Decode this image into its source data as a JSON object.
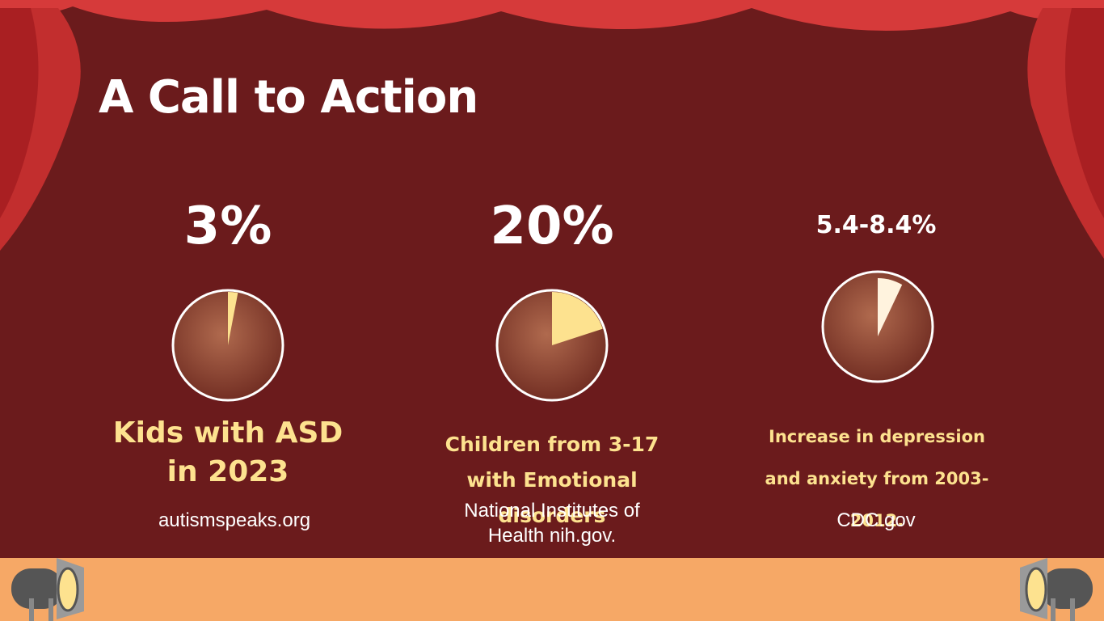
{
  "title": "A Call to Action",
  "colors": {
    "background": "#6b1b1c",
    "curtain": "#d63a3a",
    "curtain_dark": "#a91f22",
    "stage_floor": "#f6a866",
    "accent_text": "#fde28f",
    "pie_base": "#8a3a2c",
    "pie_highlight": "#b06a4e",
    "slice_1": "#fde28f",
    "slice_2": "#fde28f",
    "slice_3": "#fff3de"
  },
  "icons": [
    "spotlight-left-icon",
    "spotlight-right-icon"
  ],
  "chart_data": [
    {
      "type": "pie",
      "value_label": "3%",
      "values": [
        3,
        97
      ],
      "description": "Kids with ASD in 2023",
      "source": "autismspeaks.org"
    },
    {
      "type": "pie",
      "value_label": "20%",
      "values": [
        20,
        80
      ],
      "description": "Children  from 3-17 with Emotional disorders",
      "source": "National Institutes of Health nih.gov."
    },
    {
      "type": "pie",
      "value_label": "5.4-8.4%",
      "values": [
        8.4,
        91.6
      ],
      "range": [
        5.4,
        8.4
      ],
      "description": "Increase in depression and anxiety from 2003-2012.",
      "source": "CDC.gov"
    }
  ]
}
